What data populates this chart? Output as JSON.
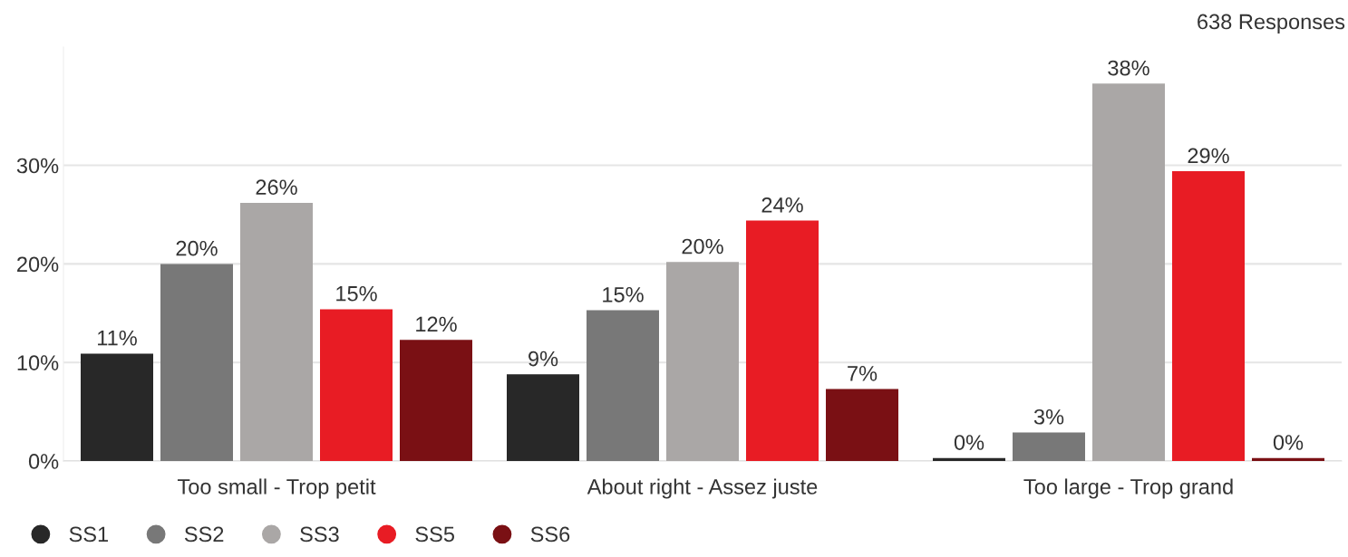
{
  "chart_data": {
    "type": "bar",
    "annotations": [
      "638 Responses"
    ],
    "categories": [
      "Too small - Trop petit",
      "About right - Assez juste",
      "Too large - Trop grand"
    ],
    "series": [
      {
        "name": "SS1",
        "color": "#282828",
        "values": [
          10.9,
          8.8,
          0.3
        ],
        "value_labels": [
          "11%",
          "9%",
          "0%"
        ]
      },
      {
        "name": "SS2",
        "color": "#787878",
        "values": [
          20.0,
          15.3,
          2.9
        ],
        "value_labels": [
          "20%",
          "15%",
          "3%"
        ]
      },
      {
        "name": "SS3",
        "color": "#aaa7a6",
        "values": [
          26.2,
          20.2,
          38.3
        ],
        "value_labels": [
          "26%",
          "20%",
          "38%"
        ]
      },
      {
        "name": "SS5",
        "color": "#e81c24",
        "values": [
          15.4,
          24.4,
          29.4
        ],
        "value_labels": [
          "15%",
          "24%",
          "29%"
        ]
      },
      {
        "name": "SS6",
        "color": "#7a1014",
        "values": [
          12.3,
          7.3,
          0.3
        ],
        "value_labels": [
          "12%",
          "7%",
          "0%"
        ]
      }
    ],
    "ylim": [
      0,
      42
    ],
    "yticks": [
      {
        "value": 0,
        "label": "0%"
      },
      {
        "value": 10,
        "label": "10%"
      },
      {
        "value": 20,
        "label": "20%"
      },
      {
        "value": 30,
        "label": "30%"
      }
    ],
    "grid": "y",
    "legend": "bottom left",
    "marker": "circle"
  }
}
